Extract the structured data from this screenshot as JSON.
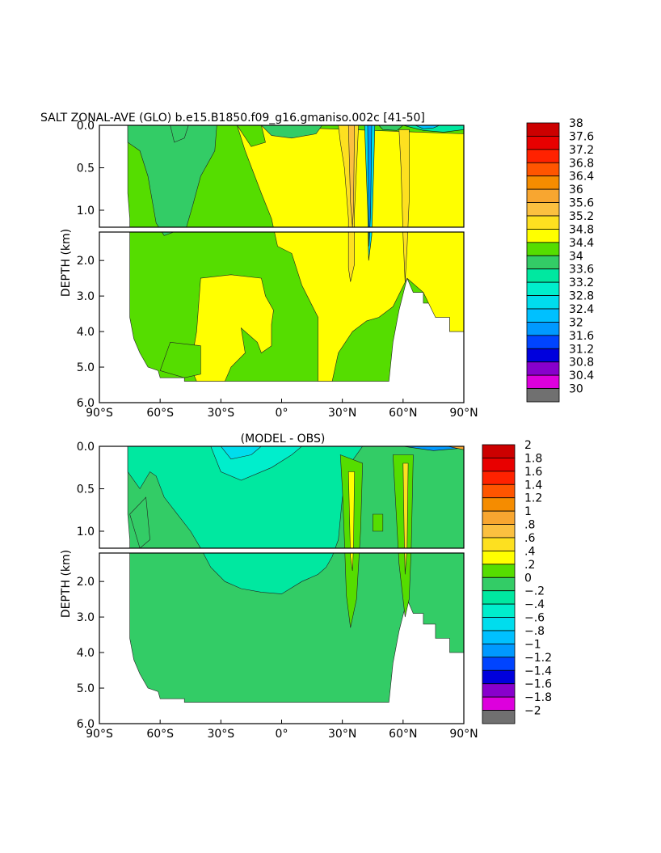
{
  "title": "SALT ZONAL-AVE (GLO) b.e15.B1850.f09_g16.gmaniso.002c [41-50]",
  "subtitle": "(MODEL - OBS)",
  "chart_data": [
    {
      "type": "heatmap",
      "kind": "filled-contour depth-latitude section",
      "title": "SALT ZONAL-AVE (GLO) b.e15.B1850.f09_g16.gmaniso.002c [41-50]",
      "xlabel": "",
      "ylabel": "DEPTH (km)",
      "xlim": [
        -90,
        90
      ],
      "ylim": [
        6.0,
        0.0
      ],
      "ylim_upper_panel": [
        1.2,
        0.0
      ],
      "ylim_lower_panel": [
        6.0,
        1.2
      ],
      "x_ticks": [
        "90°S",
        "60°S",
        "30°S",
        "0°",
        "30°N",
        "60°N",
        "90°N"
      ],
      "y_ticks_upper": [
        "0.0",
        "0.5",
        "1.0"
      ],
      "y_ticks_lower": [
        "2.0",
        "3.0",
        "4.0",
        "5.0",
        "6.0"
      ],
      "colorbar": {
        "labels": [
          "38",
          "37.6",
          "37.2",
          "36.8",
          "36.4",
          "36",
          "35.6",
          "35.2",
          "34.8",
          "34.4",
          "34",
          "33.6",
          "33.2",
          "32.8",
          "32.4",
          "32",
          "31.6",
          "31.2",
          "30.8",
          "30.4",
          "30"
        ],
        "colors": [
          "#cc0000",
          "#e80000",
          "#ff2200",
          "#ff5500",
          "#f58c00",
          "#f8a630",
          "#fbc040",
          "#fde020",
          "#ffff00",
          "#55dd00",
          "#33cc66",
          "#00e8a0",
          "#00eecc",
          "#00dded",
          "#00c0ff",
          "#0099ff",
          "#0044ff",
          "#0000dd",
          "#8800cc",
          "#dd00dd",
          "#d0d0d0",
          "#707070"
        ]
      },
      "regions": {
        "fresh_band_34.4_34.8": [
          [
            -75,
            34.6
          ],
          [
            -25,
            34.6
          ],
          [
            0,
            34.6
          ],
          [
            25,
            34.6
          ],
          [
            52,
            34.6
          ]
        ],
        "salty_band_34.8_35.2": [
          [
            -40,
            34.9
          ],
          [
            -5,
            34.9
          ],
          [
            20,
            34.9
          ],
          [
            65,
            34.9
          ],
          [
            85,
            34.9
          ]
        ],
        "mediterranean_tongue_35.6": [
          [
            35,
            35.8
          ],
          [
            62,
            35.5
          ]
        ]
      }
    },
    {
      "type": "heatmap",
      "kind": "filled-contour depth-latitude section",
      "title": "(MODEL - OBS)",
      "xlabel": "",
      "ylabel": "DEPTH (km)",
      "xlim": [
        -90,
        90
      ],
      "ylim": [
        6.0,
        0.0
      ],
      "ylim_upper_panel": [
        1.2,
        0.0
      ],
      "ylim_lower_panel": [
        6.0,
        1.2
      ],
      "x_ticks": [
        "90°S",
        "60°S",
        "30°S",
        "0°",
        "30°N",
        "60°N",
        "90°N"
      ],
      "y_ticks_upper": [
        "0.0",
        "0.5",
        "1.0"
      ],
      "y_ticks_lower": [
        "2.0",
        "3.0",
        "4.0",
        "5.0",
        "6.0"
      ],
      "colorbar": {
        "labels": [
          "2",
          "1.8",
          "1.6",
          "1.4",
          "1.2",
          "1",
          ".8",
          ".6",
          ".4",
          ".2",
          "0",
          "−.2",
          "−.4",
          "−.6",
          "−.8",
          "−1",
          "−1.2",
          "−1.4",
          "−1.6",
          "−1.8",
          "−2"
        ],
        "colors": [
          "#cc0000",
          "#e80000",
          "#ff2200",
          "#ff5500",
          "#f58c00",
          "#f8a630",
          "#fbc040",
          "#fde020",
          "#ffff00",
          "#55dd00",
          "#33cc66",
          "#00e8a0",
          "#00eecc",
          "#00dded",
          "#00c0ff",
          "#0099ff",
          "#0044ff",
          "#0000dd",
          "#8800cc",
          "#dd00dd",
          "#d0d0d0",
          "#707070"
        ]
      },
      "regions": {
        "near_zero_0_0.2": [
          [
            -75,
            0.1
          ],
          [
            0,
            0.1
          ],
          [
            55,
            0.1
          ]
        ],
        "fresh_bias_-0.2_0": [
          [
            -50,
            -0.1
          ],
          [
            -20,
            -0.1
          ],
          [
            15,
            -0.1
          ]
        ],
        "salty_bias_0.6": [
          [
            35,
            0.6
          ],
          [
            62,
            0.5
          ]
        ]
      }
    }
  ]
}
